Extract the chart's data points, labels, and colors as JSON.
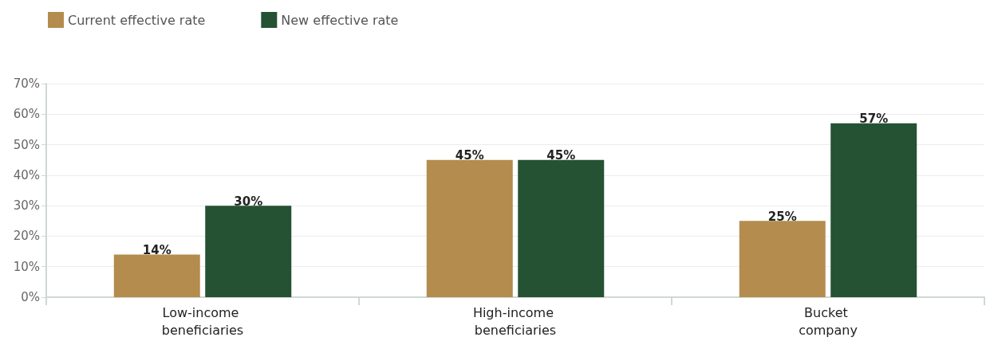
{
  "chart_data": {
    "type": "bar",
    "categories": [
      "Low-income beneficiaries",
      "High-income beneficiaries",
      "Bucket company"
    ],
    "series": [
      {
        "name": "Current effective rate",
        "color": "#b38c4e",
        "values": [
          14,
          45,
          25
        ],
        "value_labels": [
          "14%",
          "45%",
          "25%"
        ]
      },
      {
        "name": "New effective rate",
        "color": "#245233",
        "values": [
          30,
          45,
          57
        ],
        "value_labels": [
          "30%",
          "45%",
          "57%"
        ]
      }
    ],
    "ylim": [
      0,
      70
    ],
    "yticks": [
      {
        "value": 0,
        "label": "0%"
      },
      {
        "value": 10,
        "label": "10%"
      },
      {
        "value": 20,
        "label": "20%"
      },
      {
        "value": 30,
        "label": "30%"
      },
      {
        "value": 40,
        "label": "40%"
      },
      {
        "value": 50,
        "label": "50%"
      },
      {
        "value": 60,
        "label": "60%"
      },
      {
        "value": 70,
        "label": "70%"
      }
    ],
    "grid": "y",
    "legend": "top left"
  }
}
